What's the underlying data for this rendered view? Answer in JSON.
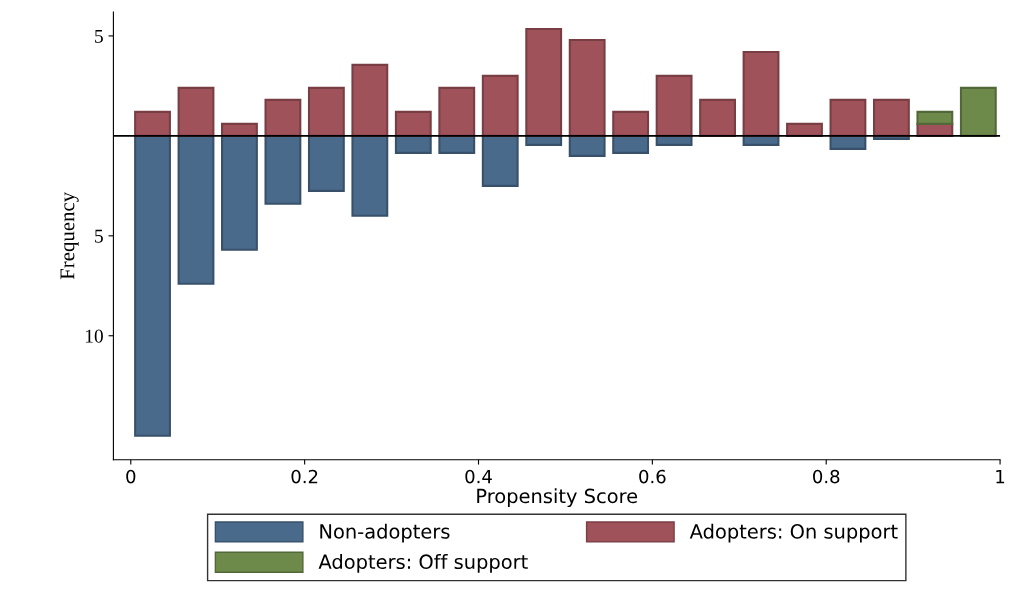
{
  "chart_data": {
    "type": "bar",
    "xlabel": "Propensity Score",
    "ylabel": "Frequency",
    "x": [
      0.025,
      0.075,
      0.125,
      0.175,
      0.225,
      0.275,
      0.325,
      0.375,
      0.425,
      0.475,
      0.525,
      0.575,
      0.625,
      0.675,
      0.725,
      0.775,
      0.825,
      0.875,
      0.925,
      0.975
    ],
    "stacked": true,
    "series": [
      {
        "name": "Non-adopters",
        "color": "#4a6a8c",
        "values": [
          -15,
          -7.4,
          -5.7,
          -3.4,
          -2.75,
          -4,
          -0.85,
          -0.85,
          -2.5,
          -0.45,
          -1,
          -0.85,
          -0.45,
          null,
          -0.45,
          null,
          -0.65,
          -0.15,
          null,
          null
        ]
      },
      {
        "name": "Adopters: On support",
        "color": "#a0525a",
        "values": [
          1.2,
          2.4,
          0.6,
          1.8,
          2.4,
          3.55,
          1.2,
          2.4,
          3,
          5.35,
          4.8,
          1.2,
          3,
          1.8,
          4.2,
          0.6,
          1.8,
          1.8,
          0.6,
          null
        ]
      },
      {
        "name": "Adopters: Off support",
        "color": "#6e8a4a",
        "values": [
          null,
          null,
          null,
          null,
          null,
          null,
          null,
          null,
          null,
          null,
          null,
          null,
          null,
          null,
          null,
          null,
          null,
          null,
          0.6,
          2.4
        ]
      }
    ],
    "xlim": [
      -0.02,
      1.0
    ],
    "xticks": [
      0,
      0.2,
      0.4,
      0.6,
      0.8,
      1
    ],
    "ylim": [
      -16.2,
      6.2
    ],
    "yticks": [
      {
        "value": 5,
        "label": "5"
      },
      {
        "value": -5,
        "label": "5"
      },
      {
        "value": -10,
        "label": "10"
      }
    ],
    "ref_lines": [
      {
        "axis": "y",
        "value": 0,
        "color": "#000000"
      }
    ],
    "legend": "bottom"
  }
}
